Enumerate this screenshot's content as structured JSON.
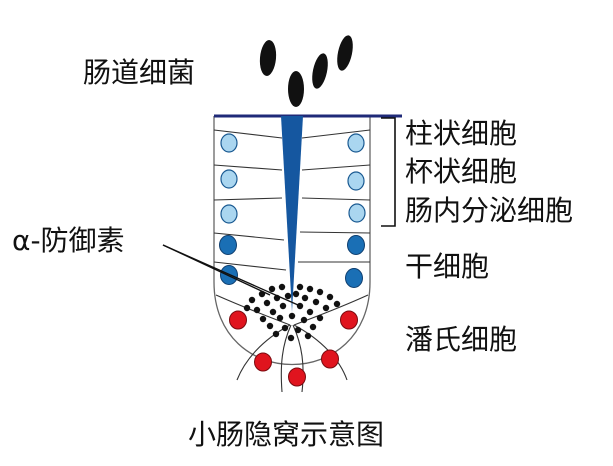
{
  "labels": {
    "bacteria": "肠道细菌",
    "defensin": "α-防御素",
    "columnar": "柱状细胞",
    "goblet": "杯状细胞",
    "enteroendocrine": "肠内分泌细胞",
    "stem": "干细胞",
    "paneth": "潘氏细胞",
    "caption": "小肠隐窝示意图"
  },
  "colors": {
    "light_cell": "#aad6f0",
    "stem_cell": "#1a6fb5",
    "paneth_cell": "#e0141e",
    "lumen": "#1557a0",
    "surface": "#1f2a78",
    "bacteria": "#111111",
    "granule": "#111111"
  }
}
